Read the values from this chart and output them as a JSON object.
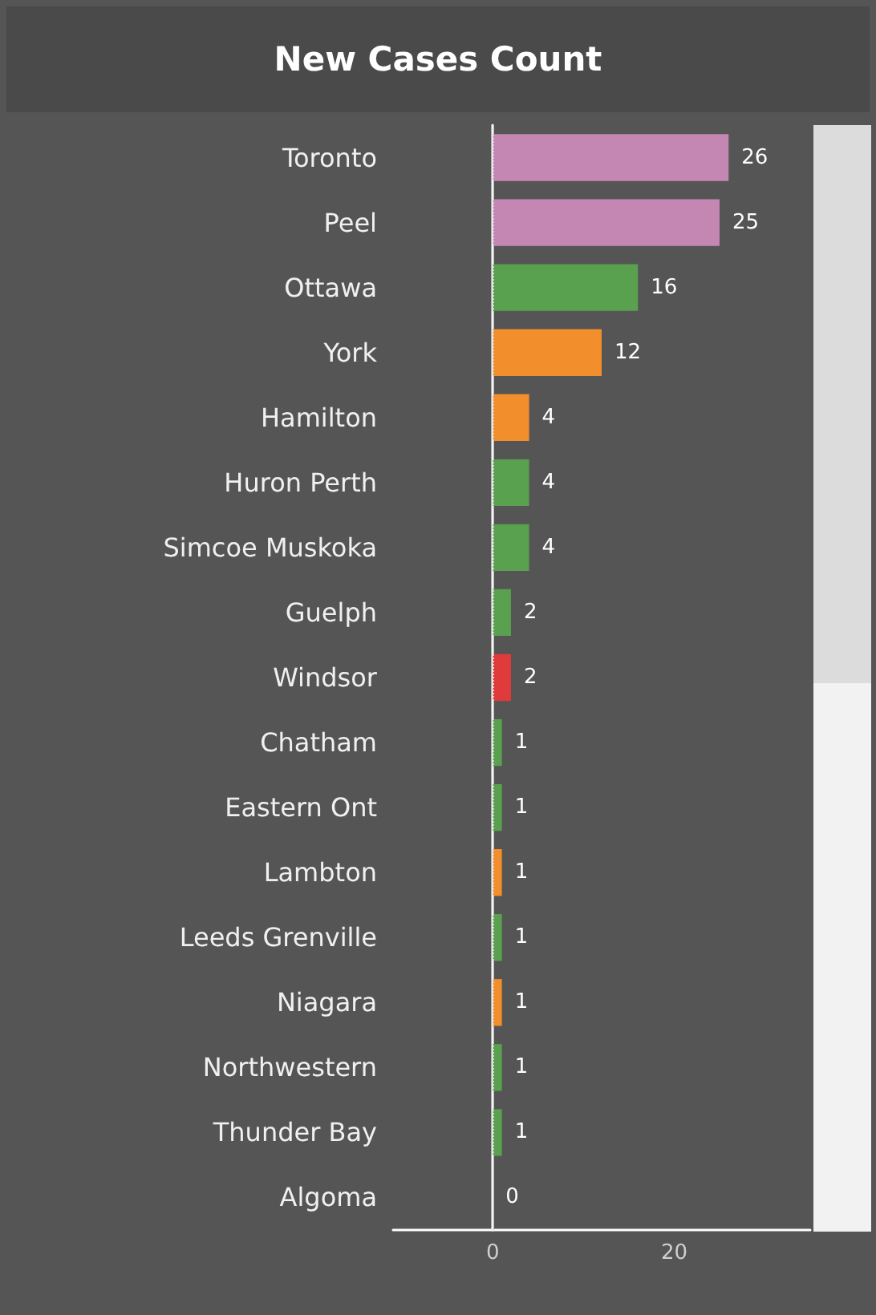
{
  "chart_data": {
    "type": "bar",
    "orientation": "horizontal",
    "title": "New Cases Count",
    "categories": [
      "Toronto",
      "Peel",
      "Ottawa",
      "York",
      "Hamilton",
      "Huron Perth",
      "Simcoe Muskoka",
      "Guelph",
      "Windsor",
      "Chatham",
      "Eastern Ont",
      "Lambton",
      "Leeds Grenville",
      "Niagara",
      "Northwestern",
      "Thunder Bay",
      "Algoma"
    ],
    "values": [
      26,
      25,
      16,
      12,
      4,
      4,
      4,
      2,
      2,
      1,
      1,
      1,
      1,
      1,
      1,
      1,
      0
    ],
    "colors": [
      "#c487b4",
      "#c487b4",
      "#59a14f",
      "#f28e2b",
      "#f28e2b",
      "#59a14f",
      "#59a14f",
      "#59a14f",
      "#e03b3b",
      "#59a14f",
      "#59a14f",
      "#f28e2b",
      "#59a14f",
      "#f28e2b",
      "#59a14f",
      "#59a14f",
      "#59a14f"
    ],
    "xlim": [
      -11,
      35
    ],
    "xticks": [
      0,
      20
    ],
    "ref_lines": [
      {
        "axis": "x",
        "value": 0,
        "color": "#d0d0d0",
        "line_style": "dotted"
      }
    ],
    "data_labels": true
  }
}
